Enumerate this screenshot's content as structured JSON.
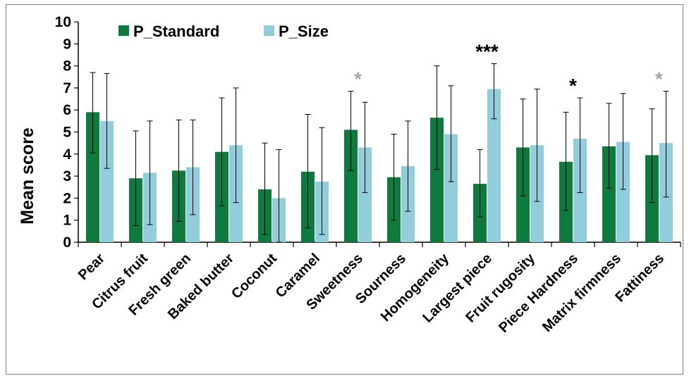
{
  "chart_data": {
    "type": "bar",
    "ylabel": "Mean score",
    "ylim": [
      0,
      10
    ],
    "yticks": [
      "0",
      "1",
      "2",
      "3",
      "4",
      "5",
      "6",
      "7",
      "8",
      "9",
      "10"
    ],
    "grid": false,
    "legend_position": "top-left",
    "categories": [
      "Pear",
      "Citrus fruit",
      "Fresh green",
      "Baked butter",
      "Coconut",
      "Caramel",
      "Sweetness",
      "Sourness",
      "Homogeneity",
      "Largest piece",
      "Fruit rugosity",
      "Piece Hardness",
      "Matrix firmness",
      "Fattiness"
    ],
    "series": [
      {
        "name": "P_Standard",
        "color": "#0f7a3d",
        "values": [
          5.9,
          2.9,
          3.25,
          4.1,
          2.4,
          3.2,
          5.1,
          2.95,
          5.65,
          2.65,
          4.3,
          3.65,
          4.35,
          3.95
        ],
        "error_low": [
          4.05,
          0.75,
          0.95,
          1.65,
          0.35,
          0.65,
          3.25,
          1.0,
          3.3,
          1.15,
          2.1,
          1.45,
          2.45,
          1.8
        ],
        "error_high": [
          7.7,
          5.05,
          5.55,
          6.55,
          4.5,
          5.8,
          6.85,
          4.9,
          8.0,
          4.2,
          6.5,
          5.9,
          6.3,
          6.05
        ]
      },
      {
        "name": "P_Size",
        "color": "#92cddc",
        "values": [
          5.5,
          3.15,
          3.4,
          4.4,
          2.0,
          2.75,
          4.3,
          3.45,
          4.9,
          6.95,
          4.4,
          4.7,
          4.55,
          4.5
        ],
        "error_low": [
          3.35,
          0.8,
          1.25,
          1.8,
          0.0,
          0.35,
          2.25,
          1.4,
          2.75,
          5.6,
          1.85,
          2.25,
          2.4,
          2.05
        ],
        "error_high": [
          7.65,
          5.5,
          5.55,
          7.0,
          4.2,
          5.2,
          6.35,
          5.5,
          7.1,
          8.1,
          6.95,
          6.55,
          6.75,
          6.85
        ]
      }
    ],
    "significance": [
      {
        "category": "Sweetness",
        "label": "*",
        "color": "#a6a6a6"
      },
      {
        "category": "Largest piece",
        "label": "***",
        "color": "#000000"
      },
      {
        "category": "Piece Hardness",
        "label": "*",
        "color": "#000000"
      },
      {
        "category": "Fattiness",
        "label": "*",
        "color": "#a6a6a6"
      }
    ]
  }
}
